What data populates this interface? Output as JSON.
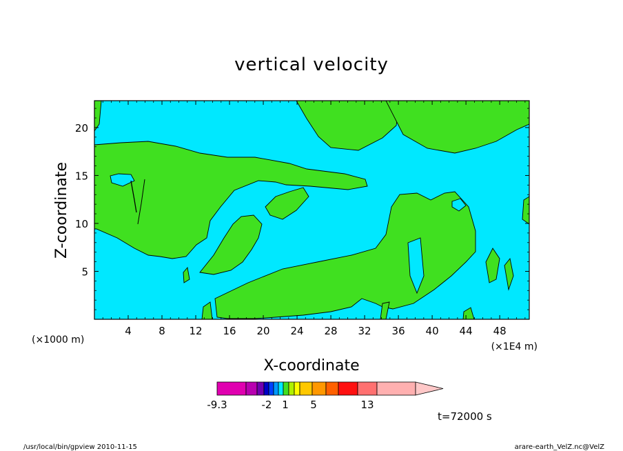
{
  "chart_data": {
    "type": "heatmap",
    "title": "vertical velocity",
    "xlabel": "X-coordinate",
    "ylabel": "Z-coordinate",
    "x_unit": "(×1E4 m)",
    "y_unit": "(×1000 m)",
    "xlim": [
      0,
      51.5
    ],
    "ylim": [
      0,
      22.8
    ],
    "x_ticks": [
      4,
      8,
      12,
      16,
      20,
      24,
      28,
      32,
      36,
      40,
      44,
      48
    ],
    "y_ticks": [
      5,
      10,
      15,
      20
    ],
    "colorbar": {
      "labels": [
        "-9.3",
        "-2",
        "1",
        "5",
        "13"
      ],
      "colors": [
        "#e000b0",
        "#b800b0",
        "#7000b0",
        "#0000c8",
        "#0040ff",
        "#0098ff",
        "#00e8ff",
        "#40e020",
        "#b0f000",
        "#ffff00",
        "#ffc800",
        "#ff9800",
        "#ff6000",
        "#ff1010",
        "#ff7070",
        "#ffb0b0",
        "#ffc8c8"
      ]
    },
    "field_colors": {
      "background": "#00e8ff",
      "positive": "#40e020"
    },
    "time_label": "t=72000 s"
  },
  "footer": {
    "left": "/usr/local/bin/gpview   2010-11-15",
    "right": "arare-earth_VelZ.nc@VelZ"
  }
}
